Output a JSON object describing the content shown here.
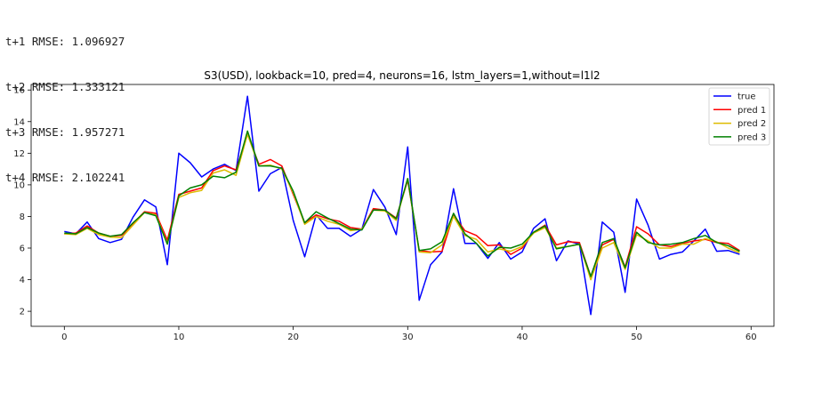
{
  "output_lines": [
    "t+1 RMSE: 1.096927",
    "t+2 RMSE: 1.333121",
    "t+3 RMSE: 1.957271",
    "t+4 RMSE: 2.102241"
  ],
  "chart_data": {
    "type": "line",
    "title": "S3(USD), lookback=10, pred=4, neurons=16, lstm_layers=1,without=l1l2",
    "xlabel": "",
    "ylabel": "",
    "xlim": [
      -2.9,
      62
    ],
    "ylim": [
      1.05,
      16.35
    ],
    "xticks": [
      0,
      10,
      20,
      30,
      40,
      50,
      60
    ],
    "yticks": [
      2,
      4,
      6,
      8,
      10,
      12,
      14,
      16
    ],
    "grid": false,
    "legend": "top-right",
    "x": [
      0,
      1,
      2,
      3,
      4,
      5,
      6,
      7,
      8,
      9,
      10,
      11,
      12,
      13,
      14,
      15,
      16,
      17,
      18,
      19,
      20,
      21,
      22,
      23,
      24,
      25,
      26,
      27,
      28,
      29,
      30,
      31,
      32,
      33,
      34,
      35,
      36,
      37,
      38,
      39,
      40,
      41,
      42,
      43,
      44,
      45,
      46,
      47,
      48,
      49,
      50,
      51,
      52,
      53,
      54,
      55,
      56,
      57,
      58,
      59
    ],
    "series": [
      {
        "name": "true",
        "color": "#0000ff",
        "values": [
          7.05,
          6.9,
          7.65,
          6.6,
          6.35,
          6.55,
          7.95,
          9.05,
          8.6,
          4.95,
          12.0,
          11.4,
          10.5,
          11.0,
          11.3,
          10.9,
          15.6,
          9.6,
          10.7,
          11.1,
          7.75,
          5.45,
          8.1,
          7.25,
          7.25,
          6.75,
          7.2,
          9.7,
          8.6,
          6.85,
          12.4,
          2.7,
          4.95,
          5.75,
          9.75,
          6.3,
          6.3,
          5.35,
          6.35,
          5.3,
          5.75,
          7.25,
          7.85,
          5.2,
          6.45,
          6.25,
          1.8,
          7.65,
          7.0,
          3.2,
          9.1,
          7.45,
          5.3,
          5.6,
          5.75,
          6.45,
          7.2,
          5.8,
          5.85,
          5.6
        ]
      },
      {
        "name": "pred 1",
        "color": "#ff0000",
        "values": [
          6.9,
          6.95,
          7.4,
          6.95,
          6.75,
          6.8,
          7.55,
          8.3,
          8.2,
          6.5,
          9.4,
          9.6,
          9.8,
          10.9,
          11.2,
          10.95,
          13.2,
          11.3,
          11.6,
          11.2,
          9.4,
          7.6,
          8.1,
          7.85,
          7.7,
          7.3,
          7.2,
          8.5,
          8.4,
          7.9,
          10.3,
          5.85,
          5.75,
          5.8,
          8.1,
          7.1,
          6.8,
          6.15,
          6.2,
          5.6,
          6.0,
          7.0,
          7.45,
          6.2,
          6.4,
          6.35,
          4.2,
          6.2,
          6.55,
          4.8,
          7.35,
          6.9,
          6.2,
          6.1,
          6.3,
          6.45,
          6.55,
          6.35,
          6.3,
          5.85
        ]
      },
      {
        "name": "pred 2",
        "color": "#ddbb00",
        "values": [
          6.9,
          6.85,
          7.25,
          6.85,
          6.7,
          6.65,
          7.45,
          8.25,
          8.1,
          6.3,
          9.2,
          9.5,
          9.65,
          10.75,
          10.95,
          10.6,
          13.2,
          11.2,
          11.25,
          11.0,
          9.5,
          7.5,
          8.0,
          7.7,
          7.5,
          7.1,
          7.2,
          8.4,
          8.35,
          7.75,
          10.4,
          5.75,
          5.7,
          6.2,
          8.0,
          6.8,
          6.55,
          5.75,
          5.95,
          5.8,
          6.1,
          6.95,
          7.3,
          6.0,
          6.1,
          6.25,
          4.0,
          6.0,
          6.35,
          4.65,
          6.85,
          6.45,
          6.0,
          6.0,
          6.25,
          6.25,
          6.6,
          6.4,
          6.0,
          5.7
        ]
      },
      {
        "name": "pred 3",
        "color": "#008000",
        "values": [
          6.95,
          6.9,
          7.3,
          6.95,
          6.75,
          6.85,
          7.6,
          8.25,
          8.05,
          6.25,
          9.3,
          9.8,
          10.0,
          10.55,
          10.45,
          10.8,
          13.4,
          11.2,
          11.2,
          11.05,
          9.6,
          7.6,
          8.3,
          7.9,
          7.55,
          7.2,
          7.15,
          8.4,
          8.4,
          7.85,
          10.4,
          5.85,
          5.95,
          6.4,
          8.2,
          6.9,
          6.3,
          5.5,
          6.05,
          6.0,
          6.25,
          7.0,
          7.4,
          5.95,
          6.1,
          6.25,
          4.2,
          6.35,
          6.6,
          4.75,
          7.0,
          6.35,
          6.2,
          6.25,
          6.35,
          6.6,
          6.8,
          6.35,
          6.15,
          5.8
        ]
      }
    ]
  }
}
